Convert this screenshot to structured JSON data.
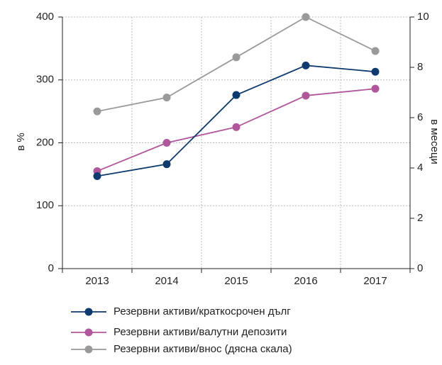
{
  "chart_data": {
    "type": "line",
    "categories": [
      "2013",
      "2014",
      "2015",
      "2016",
      "2017"
    ],
    "series": [
      {
        "name": "Резервни активи/краткосрочен дълг",
        "color": "#0e3a6e",
        "values": [
          147,
          166,
          276,
          323,
          313
        ]
      },
      {
        "name": "Резервни активи/валутни депозити",
        "color": "#b0579c",
        "values": [
          155,
          200,
          225,
          275,
          286
        ]
      },
      {
        "name": "Резервни активи/внос (дясна скала)",
        "color": "#9a9a9a",
        "axis": "y2",
        "values": [
          6.25,
          6.8,
          8.4,
          10,
          8.65
        ]
      }
    ],
    "ylabel": "в %",
    "y2label": "в месеци",
    "ylim": [
      0,
      400
    ],
    "yticks": [
      0,
      100,
      200,
      300,
      400
    ],
    "y2lim": [
      0,
      10
    ],
    "y2ticks": [
      0,
      2,
      4,
      6,
      8,
      10
    ],
    "grid": true,
    "legend": "bottom"
  }
}
